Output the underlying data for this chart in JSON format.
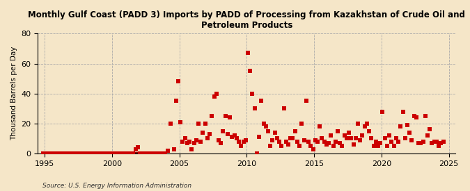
{
  "title": "Monthly Gulf Coast (PADD 3) Imports by PADD of Processing from Kazakhstan of Crude Oil and\nPetroleum Products",
  "ylabel": "Thousand Barrels per Day",
  "source": "Source: U.S. Energy Information Administration",
  "background_color": "#f5e6c8",
  "plot_bg_color": "#f5e6c8",
  "marker_color": "#cc0000",
  "marker_size": 16,
  "xlim": [
    1994.5,
    2025.5
  ],
  "ylim": [
    0,
    80
  ],
  "yticks": [
    0,
    20,
    40,
    60,
    80
  ],
  "xticks": [
    1995,
    2000,
    2005,
    2010,
    2015,
    2020,
    2025
  ],
  "scatter_x": [
    1994.917,
    1995.083,
    1995.25,
    1995.417,
    1995.583,
    1995.75,
    1995.917,
    1996.083,
    1996.25,
    1996.417,
    1996.583,
    1996.75,
    1996.917,
    1997.083,
    1997.25,
    1997.417,
    1997.583,
    1997.75,
    1997.917,
    1998.083,
    1998.25,
    1998.417,
    1998.583,
    1998.75,
    1998.917,
    1999.083,
    1999.25,
    1999.417,
    1999.583,
    1999.75,
    1999.917,
    2000.083,
    2000.25,
    2000.417,
    2000.583,
    2000.75,
    2000.917,
    2001.083,
    2001.25,
    2001.417,
    2001.583,
    2001.75,
    2001.917,
    2002.083,
    2002.25,
    2002.417,
    2002.583,
    2002.75,
    2002.917,
    2003.083,
    2003.25,
    2003.417,
    2003.583,
    2003.75,
    2003.917,
    2004.167,
    2004.333,
    2004.583,
    2004.75,
    2004.917,
    2005.083,
    2005.25,
    2005.417,
    2005.583,
    2005.75,
    2005.917,
    2006.083,
    2006.25,
    2006.417,
    2006.583,
    2006.75,
    2006.917,
    2007.083,
    2007.25,
    2007.417,
    2007.583,
    2007.75,
    2007.917,
    2008.083,
    2008.25,
    2008.417,
    2008.583,
    2008.75,
    2008.917,
    2009.083,
    2009.25,
    2009.417,
    2009.583,
    2009.75,
    2009.917,
    2010.083,
    2010.25,
    2010.417,
    2010.583,
    2010.75,
    2010.917,
    2011.083,
    2011.25,
    2011.417,
    2011.583,
    2011.75,
    2011.917,
    2012.083,
    2012.25,
    2012.417,
    2012.583,
    2012.75,
    2012.917,
    2013.083,
    2013.25,
    2013.417,
    2013.583,
    2013.75,
    2013.917,
    2014.083,
    2014.25,
    2014.417,
    2014.583,
    2014.75,
    2014.917,
    2015.083,
    2015.25,
    2015.417,
    2015.583,
    2015.75,
    2015.917,
    2016.083,
    2016.25,
    2016.417,
    2016.583,
    2016.75,
    2016.917,
    2017.083,
    2017.25,
    2017.417,
    2017.583,
    2017.75,
    2017.917,
    2018.083,
    2018.25,
    2018.417,
    2018.583,
    2018.75,
    2018.917,
    2019.083,
    2019.25,
    2019.417,
    2019.583,
    2019.75,
    2019.917,
    2020.083,
    2020.25,
    2020.417,
    2020.583,
    2020.75,
    2020.917,
    2021.083,
    2021.25,
    2021.417,
    2021.583,
    2021.75,
    2021.917,
    2022.083,
    2022.25,
    2022.417,
    2022.583,
    2022.75,
    2022.917,
    2023.083,
    2023.25,
    2023.417,
    2023.583,
    2023.75,
    2023.917,
    2024.083,
    2024.25,
    2024.417,
    2024.583
  ],
  "scatter_y": [
    0,
    0,
    0,
    0,
    0,
    0,
    0,
    0,
    0,
    0,
    0,
    0,
    0,
    0,
    0,
    0,
    0,
    0,
    0,
    0,
    0,
    0,
    0,
    0,
    0,
    0,
    0,
    0,
    0,
    0,
    0,
    0,
    0,
    0,
    0,
    0,
    0,
    0,
    0,
    0,
    0,
    3,
    4,
    0,
    0,
    0,
    0,
    0,
    0,
    0,
    0,
    0,
    0,
    0,
    0,
    2,
    20,
    3,
    35,
    48,
    21,
    8,
    10,
    7,
    8,
    3,
    7,
    9,
    20,
    8,
    14,
    20,
    10,
    13,
    25,
    38,
    40,
    9,
    7,
    15,
    25,
    13,
    24,
    11,
    12,
    10,
    8,
    5,
    8,
    9,
    67,
    55,
    40,
    30,
    0,
    11,
    35,
    20,
    18,
    15,
    5,
    9,
    14,
    10,
    8,
    5,
    30,
    8,
    6,
    10,
    10,
    15,
    8,
    5,
    20,
    9,
    35,
    8,
    5,
    3,
    9,
    8,
    18,
    10,
    8,
    6,
    7,
    12,
    5,
    8,
    15,
    7,
    5,
    12,
    10,
    14,
    10,
    6,
    10,
    20,
    9,
    12,
    18,
    20,
    15,
    10,
    5,
    8,
    5,
    7,
    28,
    10,
    5,
    12,
    8,
    5,
    10,
    8,
    18,
    28,
    10,
    19,
    14,
    9,
    25,
    24,
    7,
    7,
    8,
    25,
    12,
    16,
    7,
    8,
    8,
    5,
    7,
    8
  ]
}
